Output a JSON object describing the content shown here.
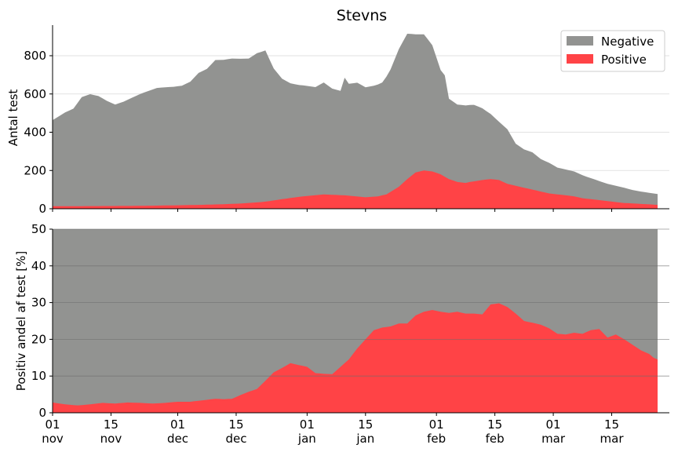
{
  "title": "Stevns",
  "colors": {
    "negative": "#929391",
    "positive": "#ff4346",
    "grid": "#d9d9d9",
    "grid_dark": "#6d6d6d",
    "axis": "#000000"
  },
  "legend": {
    "negative": "Negative",
    "positive": "Positive"
  },
  "chart_data": [
    {
      "type": "area",
      "stacked": true,
      "title": "Stevns",
      "ylabel": "Antal test",
      "xlabel": "",
      "ylim": [
        0,
        960
      ],
      "yticks": [
        0,
        200,
        400,
        600,
        800
      ],
      "grid": "horizontal",
      "legend_position": "top-right",
      "x_day_range": [
        0,
        145
      ],
      "x_label": "days since 01 nov",
      "series": [
        {
          "name": "Negative",
          "x": [
            0,
            3,
            5,
            7,
            9,
            11,
            13,
            15,
            17,
            19,
            21,
            23,
            25,
            27,
            29,
            31,
            33,
            35,
            37,
            39,
            41,
            43,
            45,
            47,
            49,
            51,
            53,
            55,
            57,
            59,
            61,
            63,
            65,
            67,
            69,
            70,
            71,
            73,
            75,
            77,
            79,
            81,
            83,
            85,
            87,
            89,
            91,
            93,
            94,
            95,
            97,
            99,
            101,
            103,
            105,
            107,
            109,
            111,
            113,
            115,
            117,
            119,
            121,
            123,
            125,
            127,
            129,
            131,
            133,
            135,
            137,
            139,
            141,
            143,
            145
          ],
          "values": [
            450,
            490,
            510,
            570,
            585,
            575,
            550,
            530,
            545,
            565,
            585,
            600,
            615,
            618,
            620,
            625,
            645,
            690,
            710,
            755,
            755,
            760,
            757,
            755,
            780,
            790,
            690,
            630,
            600,
            585,
            575,
            565,
            585,
            555,
            545,
            615,
            585,
            595,
            575,
            580,
            590,
            640,
            720,
            760,
            722,
            712,
            660,
            545,
            530,
            420,
            405,
            405,
            400,
            375,
            340,
            305,
            285,
            220,
            200,
            195,
            170,
            160,
            140,
            135,
            130,
            120,
            110,
            100,
            90,
            85,
            80,
            70,
            65,
            60,
            57
          ]
        },
        {
          "name": "Positive",
          "x": [
            0,
            10,
            20,
            30,
            35,
            40,
            45,
            50,
            52,
            55,
            60,
            65,
            70,
            75,
            78,
            80,
            83,
            85,
            87,
            89,
            91,
            93,
            95,
            97,
            99,
            100,
            103,
            105,
            107,
            109,
            111,
            113,
            115,
            117,
            119,
            121,
            123,
            125,
            127,
            129,
            131,
            133,
            135,
            137,
            139,
            141,
            143,
            145
          ],
          "values": [
            13,
            14,
            15,
            18,
            20,
            23,
            27,
            35,
            40,
            50,
            65,
            75,
            70,
            60,
            65,
            75,
            115,
            155,
            190,
            200,
            195,
            180,
            155,
            140,
            135,
            140,
            150,
            155,
            150,
            130,
            120,
            110,
            100,
            90,
            80,
            75,
            70,
            65,
            55,
            50,
            45,
            40,
            35,
            30,
            28,
            25,
            23,
            20
          ]
        }
      ]
    },
    {
      "type": "area",
      "ylabel": "Positiv andel af test [%]",
      "xlabel": "",
      "ylim": [
        0,
        50
      ],
      "yticks": [
        0,
        10,
        20,
        30,
        40,
        50
      ],
      "grid": "horizontal",
      "x_day_range": [
        0,
        145
      ],
      "series": [
        {
          "name": "Positive",
          "x": [
            0,
            3,
            6,
            9,
            12,
            15,
            18,
            21,
            24,
            27,
            30,
            33,
            36,
            39,
            41,
            43,
            45,
            47,
            49,
            51,
            53,
            55,
            57,
            59,
            61,
            63,
            65,
            67,
            69,
            71,
            73,
            75,
            77,
            79,
            81,
            83,
            85,
            87,
            89,
            91,
            93,
            95,
            97,
            99,
            101,
            103,
            105,
            107,
            109,
            111,
            113,
            115,
            117,
            119,
            121,
            123,
            125,
            127,
            129,
            131,
            133,
            135,
            137,
            139,
            141,
            143,
            144,
            145
          ],
          "values": [
            2.8,
            2.3,
            2.0,
            2.3,
            2.7,
            2.5,
            2.8,
            2.7,
            2.5,
            2.7,
            3.0,
            3.0,
            3.4,
            3.8,
            3.7,
            3.8,
            4.8,
            5.7,
            6.5,
            8.7,
            11.0,
            12.2,
            13.5,
            13.0,
            12.5,
            10.8,
            10.6,
            10.5,
            12.5,
            14.5,
            17.5,
            20.0,
            22.5,
            23.2,
            23.5,
            24.3,
            24.3,
            26.5,
            27.5,
            28.0,
            27.5,
            27.2,
            27.5,
            27.0,
            27.0,
            26.8,
            29.5,
            29.8,
            28.8,
            27.0,
            25.0,
            24.5,
            24.0,
            23.0,
            21.5,
            21.3,
            21.8,
            21.5,
            22.5,
            22.8,
            20.5,
            21.3,
            20.0,
            18.5,
            17.0,
            16.0,
            15.0,
            14.5
          ]
        }
      ],
      "background_series": {
        "name": "Negative",
        "value": 50
      }
    }
  ],
  "x_ticks": [
    {
      "day": 0,
      "top": "01",
      "bottom": "nov"
    },
    {
      "day": 14,
      "top": "15",
      "bottom": "nov"
    },
    {
      "day": 30,
      "top": "01",
      "bottom": "dec"
    },
    {
      "day": 44,
      "top": "15",
      "bottom": "dec"
    },
    {
      "day": 61,
      "top": "01",
      "bottom": "jan"
    },
    {
      "day": 75,
      "top": "15",
      "bottom": "jan"
    },
    {
      "day": 92,
      "top": "01",
      "bottom": "feb"
    },
    {
      "day": 106,
      "top": "15",
      "bottom": "feb"
    },
    {
      "day": 120,
      "top": "01",
      "bottom": "mar"
    },
    {
      "day": 134,
      "top": "15",
      "bottom": "mar"
    }
  ]
}
